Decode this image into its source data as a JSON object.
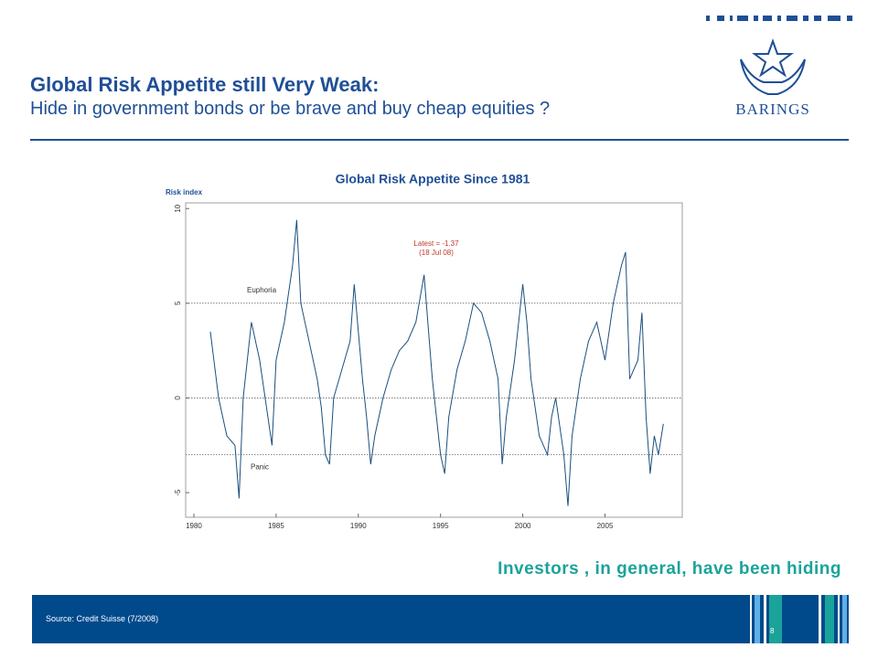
{
  "slide": {
    "title": "Global Risk Appetite still Very Weak:",
    "subtitle": "Hide in government bonds or be brave and buy cheap equities ?",
    "logo": "BARINGS",
    "caption": "Investors , in general, have been hiding",
    "source": "Source: Credit Suisse (7/2008)",
    "page": "8"
  },
  "chart_data": {
    "type": "line",
    "title": "Global Risk Appetite Since 1981",
    "y_label": "Risk index",
    "color": "#1b4f7e",
    "x": [
      1981.0,
      1981.5,
      1982.0,
      1982.5,
      1982.75,
      1983.0,
      1983.5,
      1984.0,
      1984.5,
      1984.75,
      1985.0,
      1985.5,
      1986.0,
      1986.25,
      1986.5,
      1987.0,
      1987.5,
      1987.75,
      1988.0,
      1988.25,
      1988.5,
      1989.0,
      1989.5,
      1989.75,
      1990.25,
      1990.5,
      1990.75,
      1991.0,
      1991.5,
      1992.0,
      1992.5,
      1993.0,
      1993.5,
      1994.0,
      1994.5,
      1995.0,
      1995.25,
      1995.5,
      1996.0,
      1996.5,
      1997.0,
      1997.5,
      1998.0,
      1998.5,
      1998.75,
      1999.0,
      1999.5,
      2000.0,
      2000.25,
      2000.5,
      2001.0,
      2001.5,
      2001.75,
      2002.0,
      2002.5,
      2002.75,
      2003.0,
      2003.5,
      2004.0,
      2004.5,
      2005.0,
      2005.5,
      2006.0,
      2006.25,
      2006.5,
      2007.0,
      2007.25,
      2007.5,
      2007.75,
      2008.0,
      2008.25,
      2008.55
    ],
    "values": [
      3.5,
      0,
      -2,
      -2.5,
      -5.3,
      0,
      4,
      2,
      -1,
      -2.5,
      2,
      4,
      7,
      9.4,
      5,
      3,
      1,
      -0.5,
      -3,
      -3.5,
      0,
      1.5,
      3,
      6,
      1,
      -1,
      -3.5,
      -2,
      0,
      1.5,
      2.5,
      3,
      4,
      6.5,
      1,
      -3,
      -4,
      -1,
      1.5,
      3,
      5,
      4.5,
      3,
      1,
      -3.5,
      -1,
      2,
      6,
      4,
      1,
      -2,
      -3,
      -1,
      0,
      -3,
      -5.7,
      -2,
      1,
      3,
      4,
      2,
      5,
      7,
      7.7,
      1,
      2,
      4.5,
      -1,
      -4,
      -2,
      -3,
      -1.37
    ],
    "xlim": [
      1979.5,
      2009.7
    ],
    "xticks": [
      1980,
      1985,
      1990,
      1995,
      2000,
      2005
    ],
    "ylim": [
      -6.3,
      10.3
    ],
    "yticks": [
      -5,
      0,
      5,
      10
    ],
    "reference_lines": [
      5,
      0,
      -3
    ],
    "annotations": [
      "Euphoria",
      "Panic"
    ],
    "latest_note": [
      "Latest = -1.37",
      "(18 Jul 08)"
    ],
    "latest_color": "#c0392b"
  }
}
